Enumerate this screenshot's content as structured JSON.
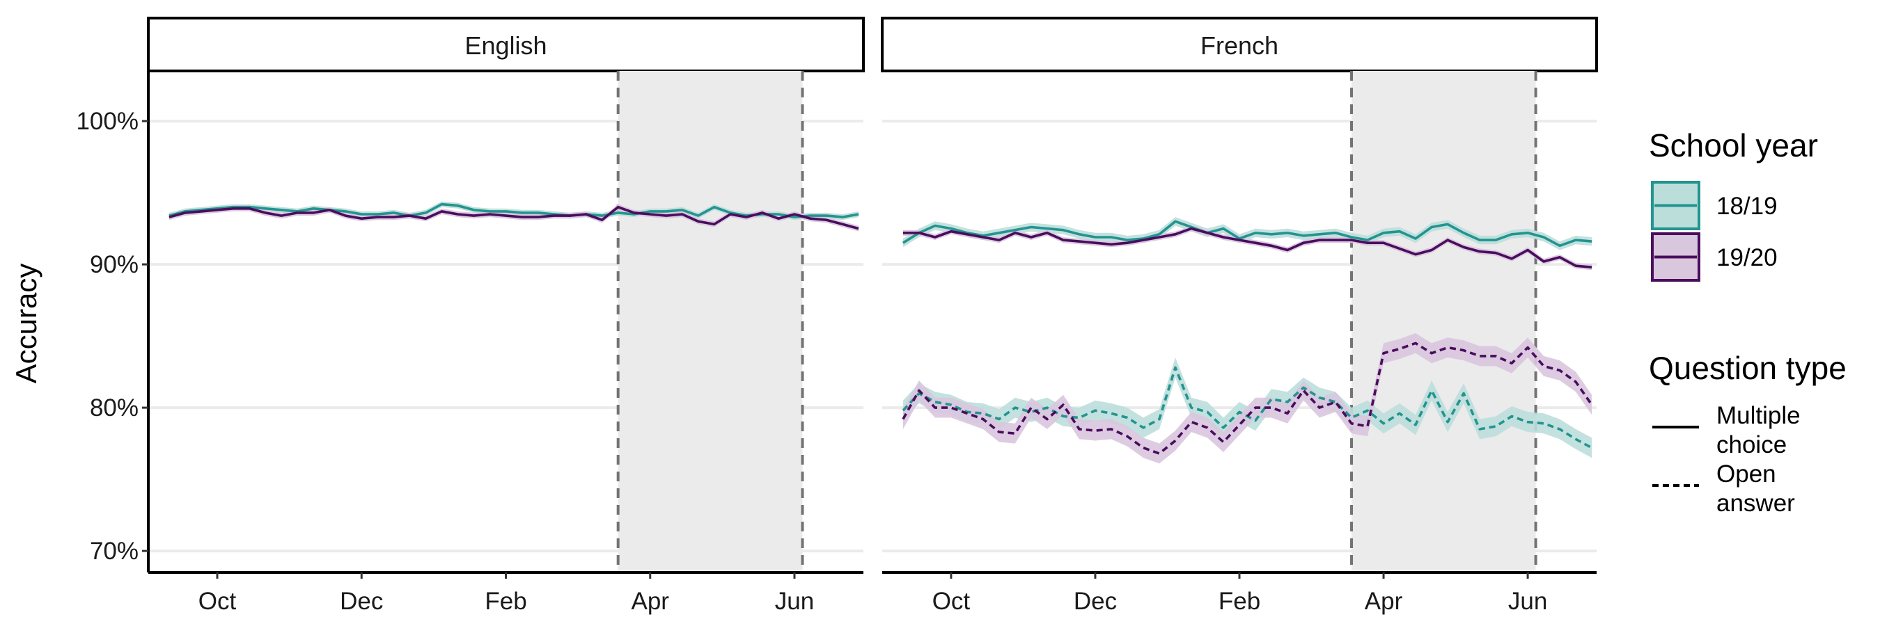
{
  "chart_data": {
    "type": "line",
    "ylabel": "Accuracy",
    "ylim": [
      0.685,
      1.035
    ],
    "y_ticks": [
      {
        "value": 0.7,
        "label": "70%"
      },
      {
        "value": 0.8,
        "label": "80%"
      },
      {
        "value": 0.9,
        "label": "90%"
      },
      {
        "value": 1.0,
        "label": "100%"
      }
    ],
    "x_ticks": [
      {
        "week": 3,
        "label": "Oct"
      },
      {
        "week": 12,
        "label": "Dec"
      },
      {
        "week": 21,
        "label": "Feb"
      },
      {
        "week": 30,
        "label": "Apr"
      },
      {
        "week": 39,
        "label": "Jun"
      }
    ],
    "xlim": [
      -1.3,
      43.3
    ],
    "shaded_period": [
      28,
      39.5
    ],
    "grid": "horizontal major",
    "facets": [
      {
        "label": "English",
        "series": [
          {
            "school_year": "18/19",
            "question_type": "Multiple choice",
            "y": [
              0.934,
              0.937,
              0.938,
              0.939,
              0.94,
              0.94,
              0.939,
              0.938,
              0.937,
              0.939,
              0.938,
              0.937,
              0.935,
              0.935,
              0.936,
              0.934,
              0.936,
              0.942,
              0.941,
              0.938,
              0.937,
              0.937,
              0.936,
              0.936,
              0.935,
              0.934,
              0.935,
              0.934,
              0.936,
              0.935,
              0.937,
              0.937,
              0.938,
              0.934,
              0.94,
              0.936,
              0.934,
              0.935,
              0.935,
              0.933,
              0.934,
              0.934,
              0.933,
              0.935
            ],
            "ci": 0.002
          },
          {
            "school_year": "19/20",
            "question_type": "Multiple choice",
            "y": [
              0.933,
              0.936,
              0.937,
              0.938,
              0.939,
              0.939,
              0.936,
              0.934,
              0.936,
              0.936,
              0.938,
              0.934,
              0.932,
              0.933,
              0.933,
              0.934,
              0.932,
              0.937,
              0.935,
              0.934,
              0.935,
              0.934,
              0.933,
              0.933,
              0.934,
              0.934,
              0.935,
              0.931,
              0.94,
              0.936,
              0.935,
              0.934,
              0.935,
              0.93,
              0.928,
              0.935,
              0.933,
              0.936,
              0.932,
              0.935,
              0.932,
              0.931,
              0.928,
              0.925
            ],
            "ci": 0.002
          }
        ]
      },
      {
        "label": "French",
        "series": [
          {
            "school_year": "18/19",
            "question_type": "Multiple choice",
            "y": [
              0.915,
              0.922,
              0.927,
              0.925,
              0.922,
              0.92,
              0.922,
              0.924,
              0.926,
              0.925,
              0.924,
              0.921,
              0.919,
              0.919,
              0.917,
              0.918,
              0.921,
              0.93,
              0.926,
              0.922,
              0.925,
              0.918,
              0.922,
              0.921,
              0.922,
              0.92,
              0.921,
              0.922,
              0.919,
              0.917,
              0.922,
              0.923,
              0.918,
              0.926,
              0.928,
              0.922,
              0.917,
              0.917,
              0.921,
              0.922,
              0.919,
              0.913,
              0.917,
              0.916
            ],
            "ci": 0.003
          },
          {
            "school_year": "19/20",
            "question_type": "Multiple choice",
            "y": [
              0.922,
              0.922,
              0.919,
              0.923,
              0.921,
              0.919,
              0.917,
              0.922,
              0.919,
              0.922,
              0.917,
              0.916,
              0.915,
              0.914,
              0.915,
              0.917,
              0.919,
              0.921,
              0.925,
              0.922,
              0.919,
              0.917,
              0.915,
              0.913,
              0.91,
              0.915,
              0.917,
              0.917,
              0.917,
              0.915,
              0.915,
              0.911,
              0.907,
              0.91,
              0.917,
              0.912,
              0.909,
              0.908,
              0.904,
              0.91,
              0.902,
              0.905,
              0.899,
              0.898
            ],
            "ci": 0.002
          },
          {
            "school_year": "18/19",
            "question_type": "Open answer",
            "y": [
              0.798,
              0.81,
              0.804,
              0.802,
              0.797,
              0.796,
              0.792,
              0.8,
              0.797,
              0.8,
              0.794,
              0.793,
              0.798,
              0.796,
              0.793,
              0.786,
              0.792,
              0.828,
              0.8,
              0.797,
              0.786,
              0.797,
              0.791,
              0.806,
              0.804,
              0.814,
              0.807,
              0.804,
              0.793,
              0.798,
              0.789,
              0.796,
              0.788,
              0.812,
              0.79,
              0.81,
              0.785,
              0.787,
              0.794,
              0.79,
              0.789,
              0.785,
              0.778,
              0.772
            ],
            "ci": 0.007
          },
          {
            "school_year": "19/20",
            "question_type": "Open answer",
            "y": [
              0.792,
              0.812,
              0.8,
              0.8,
              0.796,
              0.792,
              0.783,
              0.782,
              0.8,
              0.792,
              0.802,
              0.785,
              0.784,
              0.785,
              0.78,
              0.772,
              0.768,
              0.777,
              0.79,
              0.786,
              0.776,
              0.788,
              0.8,
              0.8,
              0.796,
              0.812,
              0.8,
              0.804,
              0.789,
              0.787,
              0.838,
              0.841,
              0.845,
              0.838,
              0.842,
              0.84,
              0.836,
              0.836,
              0.831,
              0.842,
              0.829,
              0.826,
              0.818,
              0.802
            ],
            "ci": 0.007
          }
        ]
      }
    ],
    "legend": {
      "placement": "right",
      "colour_title": "School year",
      "colour_entries": [
        {
          "label": "18/19",
          "color": "#23948f",
          "fill": "#bcdedb"
        },
        {
          "label": "19/20",
          "color": "#4a0d5e",
          "fill": "#d9c7de"
        }
      ],
      "linetype_title": "Question type",
      "linetype_entries": [
        {
          "label_lines": [
            "Multiple",
            "choice"
          ],
          "dash": "solid"
        },
        {
          "label_lines": [
            "Open",
            "answer"
          ],
          "dash": "dashed"
        }
      ]
    }
  }
}
